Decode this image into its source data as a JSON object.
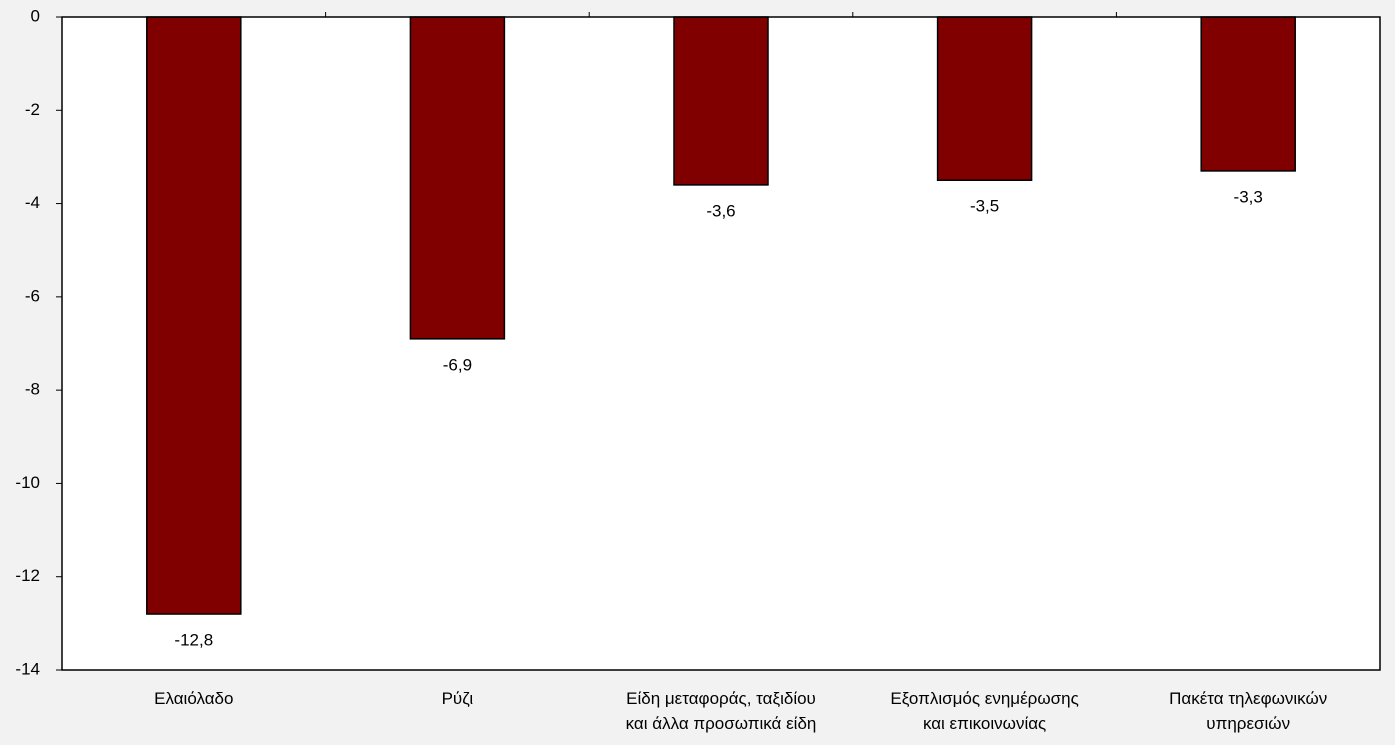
{
  "chart_data": {
    "type": "bar",
    "categories": [
      "Ελαιόλαδο",
      "Ρύζι",
      "Είδη μεταφοράς, ταξιδίου\nκαι άλλα προσωπικά είδη",
      "Εξοπλισμός ενημέρωσης\nκαι επικοινωνίας",
      "Πακέτα τηλεφωνικών\nυπηρεσιών"
    ],
    "values": [
      -12.8,
      -6.9,
      -3.6,
      -3.5,
      -3.3
    ],
    "value_labels": [
      "-12,8",
      "-6,9",
      "-3,6",
      "-3,5",
      "-3,3"
    ],
    "color": "#800000",
    "ylim": [
      -14,
      0
    ],
    "yticks": [
      0,
      -2,
      -4,
      -6,
      -8,
      -10,
      -12,
      -14
    ],
    "grid": false
  }
}
